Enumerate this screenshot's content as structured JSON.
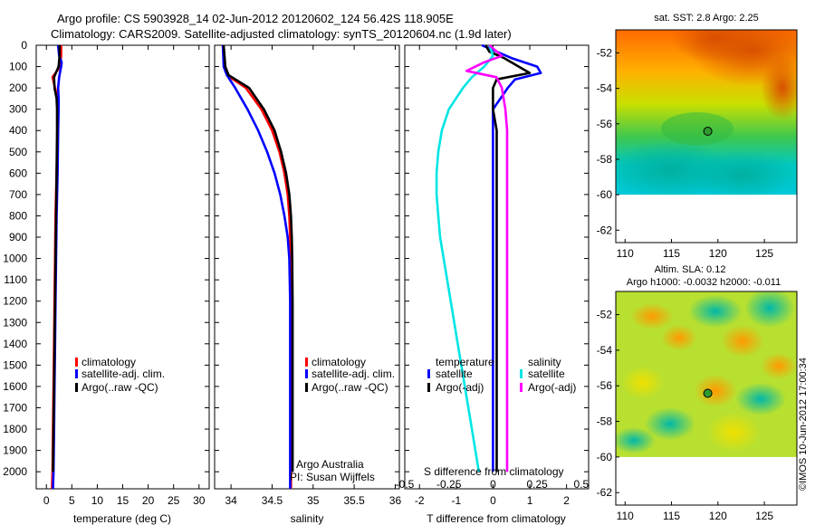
{
  "header": {
    "title_line1": "Argo profile: CS 5903928_14 02-Jun-2012 20120602_124 56.42S 118.905E",
    "title_line2": "Climatology: CARS2009. Satellite-adjusted climatology: synTS_20120604.nc (1.9d later)"
  },
  "colors": {
    "climatology": "#ff0000",
    "satellite_adj": "#0000ff",
    "argo": "#000000",
    "salinity_satellite": "#00e5e5",
    "salinity_argo": "#ff00ff"
  },
  "depth_axis": {
    "ticks": [
      "0",
      "100",
      "200",
      "300",
      "400",
      "500",
      "600",
      "700",
      "800",
      "900",
      "1000",
      "1100",
      "1200",
      "1300",
      "1400",
      "1500",
      "1600",
      "1700",
      "1800",
      "1900",
      "2000"
    ]
  },
  "chart_data": [
    {
      "type": "line",
      "name": "temperature-profile",
      "xlabel": "temperature (deg C)",
      "xlim": [
        -2,
        32
      ],
      "ylim": [
        0,
        2080
      ],
      "xticks": [
        "0",
        "5",
        "10",
        "15",
        "20",
        "25",
        "30"
      ],
      "series": [
        {
          "name": "climatology",
          "depth": [
            0,
            50,
            100,
            150,
            200,
            250,
            300,
            400,
            600,
            800,
            1000,
            1200,
            1400,
            1600,
            1800,
            2000,
            2080
          ],
          "values": [
            2.9,
            2.9,
            2.7,
            1.2,
            1.7,
            2.2,
            2.3,
            2.2,
            2.0,
            1.8,
            1.7,
            1.6,
            1.5,
            1.4,
            1.3,
            1.2,
            1.1
          ]
        },
        {
          "name": "satellite-adj. clim.",
          "depth": [
            0,
            50,
            80,
            100,
            150,
            200,
            250,
            300,
            400,
            600,
            800,
            1000,
            1200,
            1400,
            1600,
            1800,
            2000,
            2080
          ],
          "values": [
            2.3,
            2.5,
            3.0,
            2.9,
            2.5,
            2.3,
            2.4,
            2.4,
            2.3,
            2.2,
            2.0,
            1.9,
            1.8,
            1.7,
            1.6,
            1.5,
            1.4,
            1.3
          ]
        },
        {
          "name": "Argo(..raw -QC)",
          "depth": [
            0,
            50,
            100,
            150,
            200,
            250,
            300,
            400,
            600,
            800,
            1000,
            1200,
            1400,
            1600,
            1800,
            2000
          ],
          "values": [
            2.6,
            2.6,
            2.4,
            1.5,
            1.6,
            2.0,
            2.1,
            2.1,
            2.0,
            1.9,
            1.8,
            1.7,
            1.6,
            1.5,
            1.4,
            1.3
          ]
        }
      ],
      "legend": [
        "climatology",
        "satellite-adj. clim.",
        "Argo(..raw -QC)"
      ]
    },
    {
      "type": "line",
      "name": "salinity-profile",
      "xlabel": "salinity",
      "xlim": [
        33.8,
        36.05
      ],
      "ylim": [
        0,
        2080
      ],
      "xticks": [
        "34",
        "34.5",
        "35",
        "35.5",
        "36"
      ],
      "series": [
        {
          "name": "climatology",
          "depth": [
            0,
            100,
            140,
            200,
            300,
            400,
            500,
            600,
            700,
            800,
            900,
            1000,
            1200,
            1500,
            2000,
            2080
          ],
          "values": [
            33.9,
            33.92,
            33.95,
            34.18,
            34.37,
            34.5,
            34.59,
            34.65,
            34.69,
            34.71,
            34.72,
            34.725,
            34.73,
            34.73,
            34.73,
            34.73
          ]
        },
        {
          "name": "satellite-adj. clim.",
          "depth": [
            0,
            100,
            140,
            200,
            300,
            400,
            500,
            600,
            700,
            800,
            900,
            1000,
            1200,
            1500,
            2000,
            2080
          ],
          "values": [
            33.9,
            33.91,
            33.95,
            34.05,
            34.2,
            34.33,
            34.44,
            34.53,
            34.6,
            34.65,
            34.69,
            34.71,
            34.72,
            34.72,
            34.72,
            34.72
          ]
        },
        {
          "name": "Argo(..raw -QC)",
          "depth": [
            0,
            100,
            140,
            200,
            300,
            400,
            500,
            600,
            700,
            800,
            900,
            1000,
            1200,
            1500,
            2000
          ],
          "values": [
            33.91,
            33.93,
            33.97,
            34.22,
            34.4,
            34.53,
            34.61,
            34.67,
            34.71,
            34.73,
            34.74,
            34.745,
            34.75,
            34.75,
            34.75
          ]
        }
      ],
      "legend": [
        "climatology",
        "satellite-adj. clim.",
        "Argo(..raw -QC)"
      ],
      "annotation": [
        "Argo Australia",
        "PI: Susan Wijffels"
      ]
    },
    {
      "type": "line",
      "name": "difference-profile",
      "xlabel": "T difference from climatology",
      "xlabel_top": "S difference from climatology",
      "xlim": [
        -2.4,
        2.6
      ],
      "ylim": [
        0,
        2080
      ],
      "xticks": [
        "-2",
        "-1",
        "0",
        "1",
        "2"
      ],
      "xticks_top": [
        "-0.5",
        "-0.25",
        "0",
        "0.25",
        "0.5"
      ],
      "series": [
        {
          "name": "temperature satellite",
          "depth": [
            0,
            30,
            60,
            100,
            130,
            160,
            200,
            250,
            300,
            400,
            600,
            800,
            1000,
            1200,
            1500,
            1800,
            2000
          ],
          "values": [
            -0.3,
            0.1,
            0.5,
            1.2,
            1.3,
            0.6,
            0.4,
            0.2,
            0.0,
            0.0,
            0.0,
            0.0,
            0.0,
            0.0,
            0.0,
            0.0,
            0.0
          ]
        },
        {
          "name": "temperature Argo(-adj)",
          "depth": [
            0,
            30,
            60,
            100,
            130,
            160,
            200,
            250,
            300,
            400,
            600,
            800,
            1000,
            1200,
            1500,
            1800,
            2000
          ],
          "values": [
            -0.2,
            -0.1,
            0.3,
            0.7,
            1.0,
            0.1,
            0.0,
            0.0,
            0.0,
            0.1,
            0.1,
            0.1,
            0.1,
            0.1,
            0.1,
            0.1,
            0.1
          ]
        },
        {
          "name": "salinity satellite",
          "depth": [
            0,
            50,
            100,
            150,
            200,
            300,
            400,
            500,
            600,
            700,
            800,
            900,
            1000,
            1200,
            1500,
            1800,
            2000
          ],
          "values": [
            -0.02,
            0.0,
            -0.05,
            -0.12,
            -0.17,
            -0.25,
            -0.29,
            -0.31,
            -0.32,
            -0.32,
            -0.31,
            -0.3,
            -0.28,
            -0.24,
            -0.18,
            -0.12,
            -0.08
          ]
        },
        {
          "name": "salinity Argo(-adj)",
          "depth": [
            0,
            50,
            80,
            120,
            150,
            200,
            300,
            400,
            600,
            800,
            1000,
            1200,
            1500,
            1800,
            2000
          ],
          "values": [
            -0.02,
            0.05,
            -0.05,
            -0.15,
            0.02,
            0.05,
            0.07,
            0.08,
            0.08,
            0.08,
            0.08,
            0.08,
            0.08,
            0.08,
            0.08
          ]
        }
      ],
      "legend": {
        "temperature_heading": "temperature",
        "salinity_heading": "salinity",
        "temperature_items": [
          "satellite",
          "Argo(-adj)"
        ],
        "salinity_items": [
          "satellite",
          "Argo(-adj)"
        ]
      }
    },
    {
      "type": "heatmap",
      "name": "sst-map",
      "title": "sat. SST: 2.8 Argo: 2.25",
      "xlim": [
        109,
        128.5
      ],
      "ylim": [
        -62.7,
        -50.7
      ],
      "xticks": [
        "110",
        "115",
        "120",
        "125"
      ],
      "yticks": [
        "-52",
        "-54",
        "-56",
        "-58",
        "-60",
        "-62"
      ],
      "data_ylim": [
        -60,
        -50.7
      ],
      "float_position": {
        "lon": 118.905,
        "lat": -56.42
      }
    },
    {
      "type": "heatmap",
      "name": "sla-map",
      "title": "Altim. SLA: 0.12",
      "subtitle": "Argo h1000: -0.0032 h2000: -0.011",
      "xlim": [
        109,
        128.5
      ],
      "ylim": [
        -62.7,
        -50.7
      ],
      "xticks": [
        "110",
        "115",
        "120",
        "125"
      ],
      "yticks": [
        "-52",
        "-54",
        "-56",
        "-58",
        "-60",
        "-62"
      ],
      "data_ylim": [
        -60,
        -50.7
      ],
      "float_position": {
        "lon": 118.905,
        "lat": -56.42
      }
    }
  ],
  "footer": {
    "timestamp": "©IMOS 10-Jun-2012 17:00:34"
  }
}
